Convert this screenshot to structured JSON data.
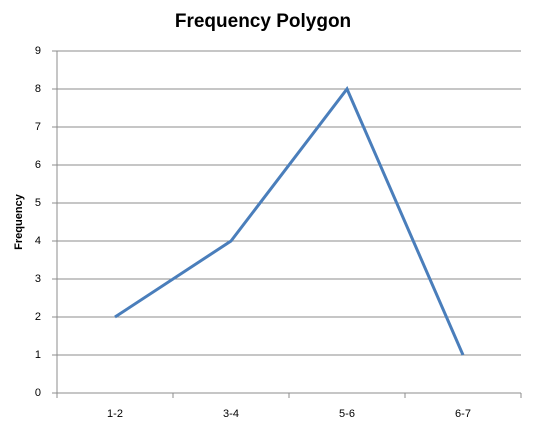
{
  "chart_data": {
    "type": "line",
    "title": "Frequency Polygon",
    "y_label": "Frequency",
    "categories": [
      "1-2",
      "3-4",
      "5-6",
      "6-7"
    ],
    "values": [
      2,
      4,
      8,
      1
    ],
    "color": "#4a7ebb",
    "ylim": [
      0,
      9
    ],
    "yticks": [
      0,
      1,
      2,
      3,
      4,
      5,
      6,
      7,
      8,
      9
    ],
    "grid": true
  }
}
